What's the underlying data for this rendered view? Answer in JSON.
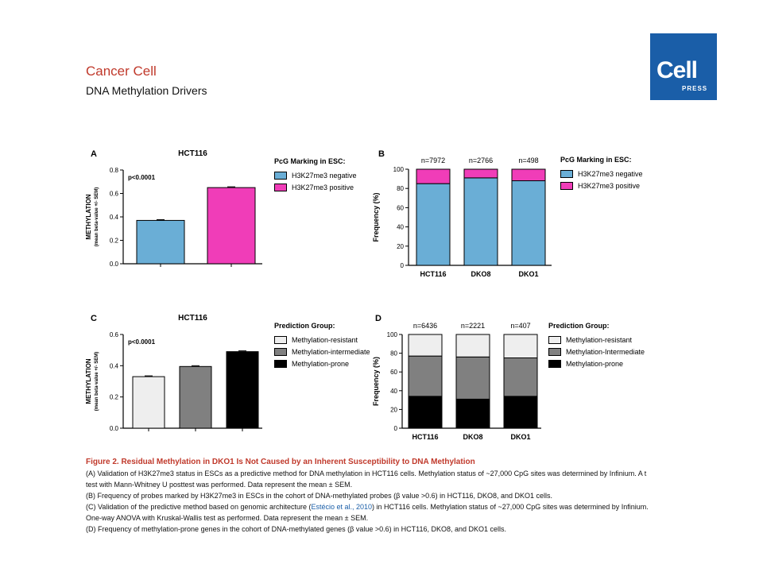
{
  "header": {
    "journal": "Cancer Cell",
    "subtitle": "DNA Methylation Drivers"
  },
  "logo": {
    "main": "Cell",
    "sub": "PRESS"
  },
  "colors": {
    "blue": "#6aaed6",
    "pink": "#f03db8",
    "white_fill": "#eeeeee",
    "gray": "#808080",
    "black": "#000000",
    "accent": "#c0392b",
    "logo_bg": "#1a5ea8"
  },
  "chart_data": [
    {
      "panel": "A",
      "type": "bar",
      "title": "HCT116",
      "ylabel": "METHYLATION",
      "ylabel2": "(mean beta-value +/- SEM)",
      "annotation": "p<0.0001",
      "ylim": [
        0,
        0.8
      ],
      "yticks": [
        "0.0",
        "0.2",
        "0.4",
        "0.6",
        "0.8"
      ],
      "legend_title": "PcG Marking in ESC:",
      "series": [
        {
          "name": "H3K27me3 negative",
          "value": 0.37,
          "color": "#6aaed6"
        },
        {
          "name": "H3K27me3 positive",
          "value": 0.65,
          "color": "#f03db8"
        }
      ]
    },
    {
      "panel": "B",
      "type": "bar",
      "stacked": true,
      "ylabel": "Frequency (%)",
      "ylim": [
        0,
        100
      ],
      "yticks": [
        "0",
        "20",
        "40",
        "60",
        "80",
        "100"
      ],
      "categories": [
        "HCT116",
        "DKO8",
        "DKO1"
      ],
      "counts": [
        "n=7972",
        "n=2766",
        "n=498"
      ],
      "legend_title": "PcG Marking in ESC:",
      "series": [
        {
          "name": "H3K27me3 negative",
          "values": [
            85,
            91,
            88
          ],
          "color": "#6aaed6"
        },
        {
          "name": "H3K27me3 positive",
          "values": [
            15,
            9,
            12
          ],
          "color": "#f03db8"
        }
      ]
    },
    {
      "panel": "C",
      "type": "bar",
      "title": "HCT116",
      "ylabel": "METHYLATION",
      "ylabel2": "(mean beta-value +/- SEM)",
      "annotation": "p<0.0001",
      "ylim": [
        0,
        0.6
      ],
      "yticks": [
        "0.0",
        "0.2",
        "0.4",
        "0.6"
      ],
      "legend_title": "Prediction Group:",
      "series": [
        {
          "name": "Methylation-resistant",
          "value": 0.33,
          "color": "#eeeeee"
        },
        {
          "name": "Methylation-intermediate",
          "value": 0.395,
          "color": "#808080"
        },
        {
          "name": "Methylation-prone",
          "value": 0.49,
          "color": "#000000"
        }
      ]
    },
    {
      "panel": "D",
      "type": "bar",
      "stacked": true,
      "ylabel": "Frequency (%)",
      "ylim": [
        0,
        100
      ],
      "yticks": [
        "0",
        "20",
        "40",
        "60",
        "80",
        "100"
      ],
      "categories": [
        "HCT116",
        "DKO8",
        "DKO1"
      ],
      "counts": [
        "n=6436",
        "n=2221",
        "n=407"
      ],
      "legend_title": "Prediction Group:",
      "series": [
        {
          "name": "Methylation-prone",
          "values": [
            34,
            31,
            34
          ],
          "color": "#000000"
        },
        {
          "name": "Methylation-Intermediate",
          "values": [
            43,
            45,
            41
          ],
          "color": "#808080"
        },
        {
          "name": "Methylation-resistant",
          "values": [
            23,
            24,
            25
          ],
          "color": "#eeeeee"
        }
      ],
      "legend_order": [
        2,
        1,
        0
      ]
    }
  ],
  "caption": {
    "title": "Figure 2. Residual Methylation in DKO1 Is Not Caused by an Inherent Susceptibility to DNA Methylation",
    "a": "(A) Validation of H3K27me3 status in ESCs as a predictive method for DNA methylation in HCT116 cells. Methylation status of ~27,000 CpG sites was determined by Infinium. A t test with Mann-Whitney U posttest was performed. Data represent the mean ± SEM.",
    "b": "(B) Frequency of probes marked by H3K27me3 in ESCs in the cohort of DNA-methylated probes (β value >0.6) in HCT116, DKO8, and DKO1 cells.",
    "c_pre": "(C) Validation of the predictive method based on genomic architecture (",
    "c_link": "Estécio et al., 2010",
    "c_post": ") in HCT116 cells. Methylation status of ~27,000 CpG sites was determined by Infinium. One-way ANOVA with Kruskal-Wallis test as performed. Data represent the mean ± SEM.",
    "d": "(D) Frequency of methylation-prone genes in the cohort of DNA-methylated genes (β value >0.6) in HCT116, DKO8, and DKO1 cells."
  }
}
